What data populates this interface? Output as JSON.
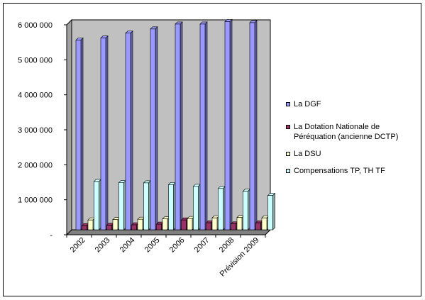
{
  "chart_data": {
    "type": "bar",
    "title": "",
    "xlabel": "",
    "ylabel": "",
    "ylim": [
      0,
      6000000
    ],
    "y_ticks": [
      "-",
      "1 000 000",
      "2 000 000",
      "3 000 000",
      "4 000 000",
      "5 000 000",
      "6 000 000"
    ],
    "categories": [
      "2002",
      "2003",
      "2004",
      "2005",
      "2006",
      "2007",
      "2008",
      "Prévision 2009"
    ],
    "series": [
      {
        "name": "La DGF",
        "color": "#9999ff",
        "values": [
          5420000,
          5480000,
          5620000,
          5740000,
          5880000,
          5880000,
          5950000,
          5920000
        ]
      },
      {
        "name": "La Dotation Nationale de Péréquation (ancienne DCTP)",
        "color": "#993366",
        "values": [
          120000,
          130000,
          140000,
          160000,
          280000,
          200000,
          170000,
          200000
        ]
      },
      {
        "name": "La DSU",
        "color": "#ffffcc",
        "values": [
          280000,
          290000,
          300000,
          310000,
          320000,
          340000,
          350000,
          340000
        ]
      },
      {
        "name": "Compensations TP, TH TF",
        "color": "#ccffff",
        "values": [
          1380000,
          1350000,
          1340000,
          1290000,
          1240000,
          1180000,
          1100000,
          980000
        ]
      }
    ],
    "grid": false,
    "legend": "right",
    "plot_background": "#c0c0c0"
  }
}
